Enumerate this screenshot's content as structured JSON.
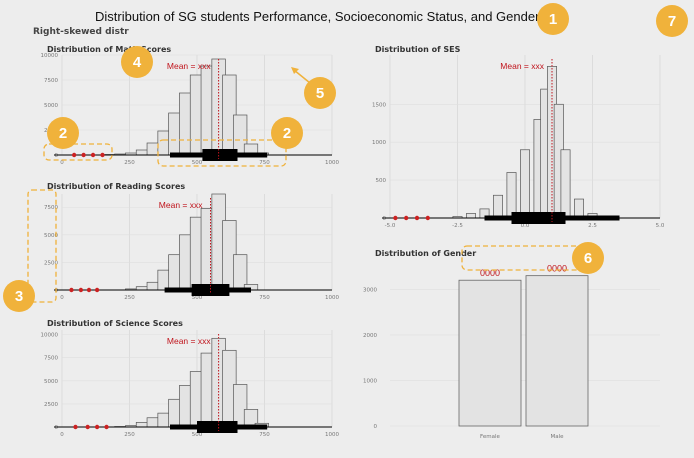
{
  "title": "Distribution of SG students Performance, Socioeconomic Status, and Gender",
  "overlay_note": "Right-skewed distr",
  "annotations": [
    "1",
    "2",
    "2",
    "3",
    "4",
    "5",
    "6",
    "7"
  ],
  "colors": {
    "bar": "#e3e3e3",
    "bar_stroke": "#555555",
    "mean_line": "#c0141c",
    "outlier": "#cc2222",
    "highlight": "#f0b23b",
    "annotation_bg": "#f0b23b"
  },
  "chart_data": [
    {
      "type": "bar",
      "title": "Distribution of Math Scores",
      "mean_label": "Mean = xxx",
      "x": [
        180,
        220,
        260,
        300,
        340,
        380,
        420,
        460,
        500,
        540,
        580,
        620,
        660,
        700,
        740
      ],
      "values": [
        50,
        100,
        200,
        500,
        1200,
        2400,
        4200,
        6200,
        8000,
        8900,
        9600,
        8000,
        4000,
        1100,
        200
      ],
      "x_ticks": [
        "0",
        "250",
        "500",
        "750",
        "1000"
      ],
      "y_ticks": [
        "0",
        "2500",
        "5000",
        "7500",
        "10000"
      ],
      "xlim": [
        0,
        1000
      ],
      "ylim": [
        0,
        10000
      ],
      "mean": 580,
      "outliers": [
        45,
        80,
        115,
        150
      ],
      "box": {
        "whisker_lo": 400,
        "q1": 520,
        "q3": 650,
        "whisker_hi": 760
      }
    },
    {
      "type": "bar",
      "title": "Distribution of Reading Scores",
      "mean_label": "Mean = xxx",
      "x": [
        260,
        300,
        340,
        380,
        420,
        460,
        500,
        540,
        580,
        620,
        660,
        700
      ],
      "values": [
        100,
        300,
        700,
        1800,
        3200,
        5000,
        6600,
        7400,
        8700,
        6300,
        3200,
        500
      ],
      "x_ticks": [
        "0",
        "250",
        "500",
        "750",
        "1000"
      ],
      "y_ticks": [
        "0",
        "2500",
        "5000",
        "7500"
      ],
      "xlim": [
        0,
        1000
      ],
      "ylim": [
        0,
        8700
      ],
      "mean": 550,
      "outliers": [
        35,
        70,
        100,
        130
      ],
      "box": {
        "whisker_lo": 380,
        "q1": 480,
        "q3": 620,
        "whisker_hi": 700
      }
    },
    {
      "type": "bar",
      "title": "Distribution of Science Scores",
      "mean_label": "Mean = xxx",
      "x": [
        220,
        260,
        300,
        340,
        380,
        420,
        460,
        500,
        540,
        580,
        620,
        660,
        700,
        740
      ],
      "values": [
        50,
        150,
        500,
        1000,
        1500,
        3000,
        4500,
        6000,
        8000,
        9600,
        8300,
        4600,
        1900,
        400
      ],
      "x_ticks": [
        "0",
        "250",
        "500",
        "750",
        "1000"
      ],
      "y_ticks": [
        "0",
        "2500",
        "5000",
        "7500",
        "10000"
      ],
      "xlim": [
        0,
        1000
      ],
      "ylim": [
        0,
        10500
      ],
      "mean": 580,
      "outliers": [
        50,
        95,
        130,
        165
      ],
      "box": {
        "whisker_lo": 400,
        "q1": 500,
        "q3": 650,
        "whisker_hi": 760
      }
    },
    {
      "type": "bar",
      "title": "Distribution of SES",
      "mean_label": "Mean = xxx",
      "x": [
        -2.5,
        -2.0,
        -1.5,
        -1.0,
        -0.5,
        0.0,
        0.5,
        0.75,
        1.0,
        1.25,
        1.5,
        2.0,
        2.5
      ],
      "values": [
        20,
        60,
        120,
        300,
        600,
        900,
        1300,
        1700,
        2000,
        1500,
        900,
        250,
        60
      ],
      "x_ticks": [
        "-5.0",
        "-2.5",
        "0.0",
        "2.5",
        "5.0"
      ],
      "y_ticks": [
        "0",
        "500",
        "1000",
        "1500"
      ],
      "xlim": [
        -5.0,
        5.0
      ],
      "ylim": [
        0,
        2150
      ],
      "mean": 1.0,
      "outliers": [
        -4.8,
        -4.4,
        -4.0,
        -3.6
      ],
      "box": {
        "whisker_lo": -1.5,
        "q1": -0.5,
        "q3": 1.5,
        "whisker_hi": 3.5
      }
    },
    {
      "type": "bar",
      "title": "Distribution of Gender",
      "categories": [
        "Female",
        "Male"
      ],
      "values": [
        3200,
        3300
      ],
      "data_labels": [
        "0000",
        "0000"
      ],
      "y_ticks": [
        "0",
        "1000",
        "2000",
        "3000"
      ],
      "ylim": [
        0,
        3600
      ]
    }
  ]
}
